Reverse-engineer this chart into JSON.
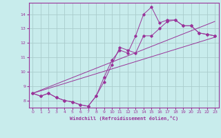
{
  "xlabel": "Windchill (Refroidissement éolien,°C)",
  "bg_color": "#c8ecec",
  "line_color": "#993399",
  "grid_color": "#aacccc",
  "xlim": [
    -0.5,
    23.5
  ],
  "ylim": [
    7.5,
    14.8
  ],
  "xticks": [
    0,
    1,
    2,
    3,
    4,
    5,
    6,
    7,
    8,
    9,
    10,
    11,
    12,
    13,
    14,
    15,
    16,
    17,
    18,
    19,
    20,
    21,
    22,
    23
  ],
  "yticks": [
    8,
    9,
    10,
    11,
    12,
    13,
    14
  ],
  "lines": [
    {
      "x": [
        0,
        1,
        2,
        3,
        4,
        5,
        6,
        7,
        8,
        9,
        10,
        11,
        12,
        13,
        14,
        15,
        16,
        17,
        18,
        19,
        20,
        21,
        22,
        23
      ],
      "y": [
        8.5,
        8.3,
        8.5,
        8.2,
        8.0,
        7.9,
        7.7,
        7.6,
        8.3,
        9.6,
        10.8,
        11.5,
        11.3,
        12.5,
        14.0,
        14.5,
        13.4,
        13.6,
        13.6,
        13.2,
        13.2,
        12.7,
        12.6,
        12.5
      ]
    },
    {
      "x": [
        0,
        1,
        2,
        3,
        4,
        5,
        6,
        7,
        8,
        9,
        10,
        11,
        12,
        13,
        14,
        15,
        16,
        17,
        18,
        19,
        20,
        21,
        22,
        23
      ],
      "y": [
        8.5,
        8.3,
        8.5,
        8.2,
        8.0,
        7.9,
        7.7,
        7.6,
        8.3,
        9.3,
        10.5,
        11.7,
        11.5,
        11.3,
        12.5,
        12.5,
        13.0,
        13.5,
        13.6,
        13.2,
        13.2,
        12.7,
        12.6,
        12.5
      ]
    },
    {
      "x": [
        0,
        23
      ],
      "y": [
        8.5,
        13.5
      ]
    },
    {
      "x": [
        0,
        23
      ],
      "y": [
        8.5,
        12.4
      ]
    }
  ]
}
